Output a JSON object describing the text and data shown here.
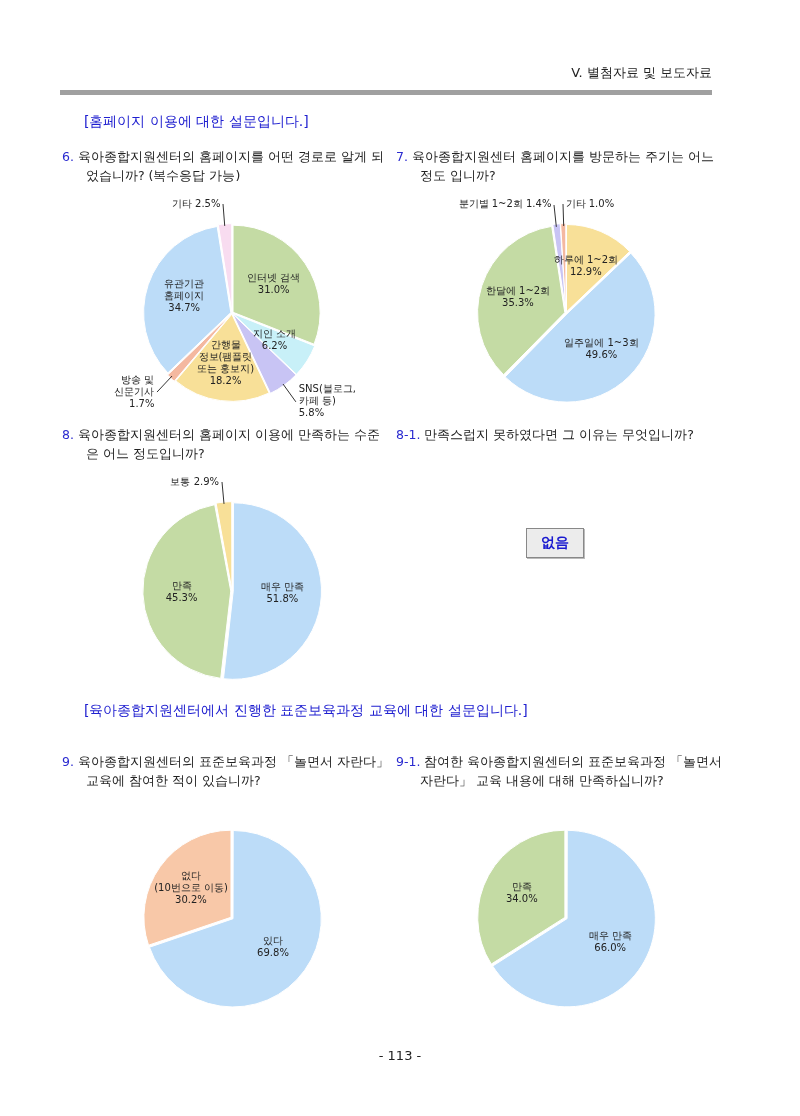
{
  "chart_data": [
    {
      "type": "other",
      "title": "V. 별첨자료 및 보도자료",
      "annotations": [
        "[홈페이지 이용에 대한 설문입니다.]",
        "[육아종합지원센터에서 진행한 표준보육과정 교육에 대한 설문입니다.]",
        "- 113 -"
      ]
    },
    {
      "type": "pie",
      "title": "6. 육아종합지원센터의 홈페이지를 어떤 경로로 알게 되었습니까? (복수응답 가능)",
      "categories": [
        "인터넷 검색",
        "지인 소개",
        "SNS(블로그,\n카페 등)",
        "간행물\n정보(팸플릿\n또는 홍보지)",
        "방송 및\n신문기사",
        "유관기관\n홈페이지",
        "기타"
      ],
      "values": [
        31.0,
        6.2,
        5.8,
        18.2,
        1.7,
        34.7,
        2.5
      ],
      "value_labels": [
        "31.0%",
        "6.2%",
        "5.8%",
        "18.2%",
        "1.7%",
        "34.7%",
        "2.5%"
      ],
      "colors": [
        "#c4dba4",
        "#c8f0f8",
        "#c8c4f4",
        "#f8e098",
        "#f4b8a0",
        "#bcdcf8",
        "#f8dcf0"
      ]
    },
    {
      "type": "pie",
      "title": "7. 육아종합지원센터 홈페이지를 방문하는 주기는 어느 정도 입니까?",
      "categories": [
        "하루에 1~2회",
        "일주일에 1~3회",
        "한달에 1~2회",
        "분기별 1~2회",
        "기타"
      ],
      "values": [
        12.9,
        49.6,
        35.3,
        1.4,
        1.0
      ],
      "value_labels": [
        "12.9%",
        "49.6%",
        "35.3%",
        "1.4%",
        "1.0%"
      ],
      "colors": [
        "#f8e098",
        "#bcdcf8",
        "#c4dba4",
        "#c8c4f4",
        "#f4b8a0"
      ]
    },
    {
      "type": "pie",
      "title": "8. 육아종합지원센터의 홈페이지 이용에 만족하는 수준은 어느 정도입니까?",
      "categories": [
        "매우 만족",
        "만족",
        "보통"
      ],
      "values": [
        51.8,
        45.3,
        2.9
      ],
      "value_labels": [
        "51.8%",
        "45.3%",
        "2.9%"
      ],
      "colors": [
        "#bcdcf8",
        "#c4dba4",
        "#f8e098"
      ]
    },
    {
      "type": "other",
      "title": "8-1. 만족스럽지 못하였다면 그 이유는 무엇입니까?",
      "annotations": [
        "없음"
      ]
    },
    {
      "type": "pie",
      "title": "9. 육아종합지원센터의 표준보육과정 「놀면서 자란다」 교육에 참여한 적이 있습니까?",
      "categories": [
        "있다",
        "없다\n(10번으로 이동)"
      ],
      "values": [
        69.8,
        30.2
      ],
      "value_labels": [
        "69.8%",
        "30.2%"
      ],
      "colors": [
        "#bcdcf8",
        "#f8c8a8"
      ]
    },
    {
      "type": "pie",
      "title": "9-1. 참여한 육아종합지원센터의 표준보육과정 「놀면서 자란다」 교육 내용에 대해 만족하십니까?",
      "categories": [
        "매우 만족",
        "만족"
      ],
      "values": [
        66.0,
        34.0
      ],
      "value_labels": [
        "66.0%",
        "34.0%"
      ],
      "colors": [
        "#bcdcf8",
        "#c4dba4"
      ]
    }
  ]
}
